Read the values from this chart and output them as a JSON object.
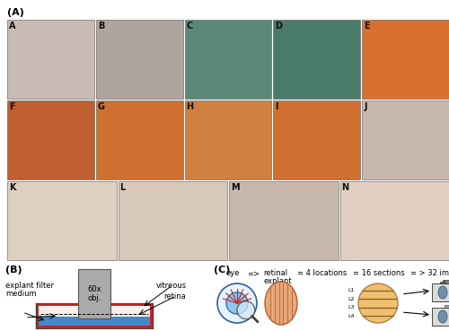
{
  "fig_width": 5.0,
  "fig_height": 3.69,
  "dpi": 100,
  "background_color": "#ffffff",
  "panel_A_label": "(A)",
  "panel_B_label": "(B)",
  "panel_C_label": "(C)",
  "row1_labels": [
    "A",
    "B",
    "C",
    "D",
    "E"
  ],
  "row2_labels": [
    "F",
    "G",
    "H",
    "I",
    "J"
  ],
  "row3_labels": [
    "K",
    "L",
    "M",
    "N"
  ],
  "row1_avg_colors": [
    "#c8bab5",
    "#b0a49e",
    "#5a8878",
    "#4a7a6a",
    "#d87030"
  ],
  "row2_avg_colors": [
    "#c06030",
    "#d07030",
    "#d08040",
    "#d07030",
    "#c8b8b0"
  ],
  "row3_avg_colors": [
    "#ddd0c0",
    "#d8c8b8",
    "#c8b8ac",
    "#e0cfc0"
  ],
  "label_color": "#111111",
  "label_fontsize": 7
}
